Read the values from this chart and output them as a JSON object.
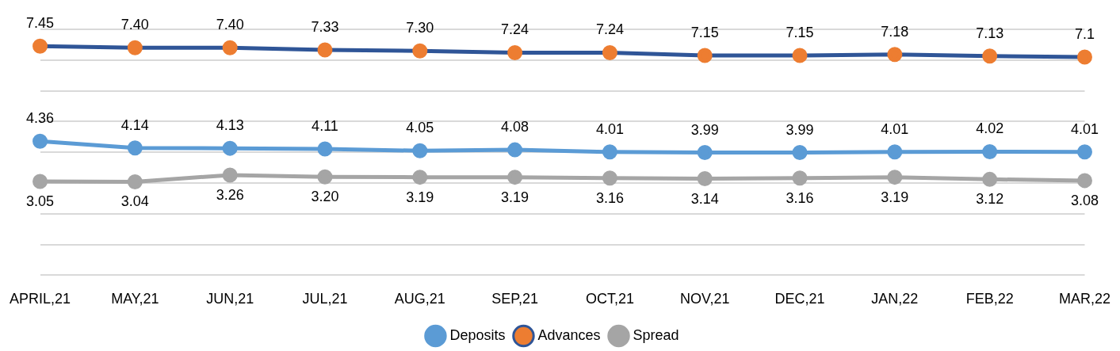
{
  "chart_data": {
    "type": "line",
    "categories": [
      "APRIL,21",
      "MAY,21",
      "JUN,21",
      "JUL,21",
      "AUG,21",
      "SEP,21",
      "OCT,21",
      "NOV,21",
      "DEC,21",
      "JAN,22",
      "FEB,22",
      "MAR,22"
    ],
    "ylim": [
      0,
      8
    ],
    "yticks": [
      {
        "value": 0,
        "label": null
      },
      {
        "value": 1,
        "label": null
      },
      {
        "value": 2,
        "label": null
      },
      {
        "value": 3,
        "label": null
      },
      {
        "value": 4,
        "label": null
      },
      {
        "value": 5,
        "label": null
      },
      {
        "value": 6,
        "label": null
      },
      {
        "value": 7,
        "label": null
      },
      {
        "value": 8,
        "label": null
      }
    ],
    "grid": "y",
    "legend": "bottom",
    "marker": "circle",
    "line_style": "solid",
    "series": [
      {
        "name": "Deposits",
        "color": "#5b9bd5",
        "values": [
          4.36,
          4.14,
          4.13,
          4.11,
          4.05,
          4.08,
          4.01,
          3.99,
          3.99,
          4.01,
          4.02,
          4.01
        ],
        "value_labels": [
          "4.36",
          "4.14",
          "4.13",
          "4.11",
          "4.05",
          "4.08",
          "4.01",
          "3.99",
          "3.99",
          "4.01",
          "4.02",
          "4.01"
        ]
      },
      {
        "name": "Advances",
        "color": "#2f5597",
        "colors": [
          "#ed7d31",
          "#ed7d31",
          "#ed7d31",
          "#ed7d31",
          "#ed7d31",
          "#ed7d31",
          "#ed7d31",
          "#ed7d31",
          "#ed7d31",
          "#ed7d31",
          "#ed7d31",
          "#ed7d31"
        ],
        "values": [
          7.45,
          7.4,
          7.4,
          7.33,
          7.3,
          7.24,
          7.24,
          7.15,
          7.15,
          7.18,
          7.13,
          7.1
        ],
        "value_labels": [
          "7.45",
          "7.40",
          "7.40",
          "7.33",
          "7.30",
          "7.24",
          "7.24",
          "7.15",
          "7.15",
          "7.18",
          "7.13",
          "7.1"
        ]
      },
      {
        "name": "Spread",
        "color": "#a5a5a5",
        "values": [
          3.05,
          3.04,
          3.26,
          3.2,
          3.19,
          3.19,
          3.16,
          3.14,
          3.16,
          3.19,
          3.12,
          3.08
        ],
        "value_labels": [
          "3.05",
          "3.04",
          "3.26",
          "3.20",
          "3.19",
          "3.19",
          "3.16",
          "3.14",
          "3.16",
          "3.19",
          "3.12",
          "3.08"
        ]
      }
    ]
  }
}
